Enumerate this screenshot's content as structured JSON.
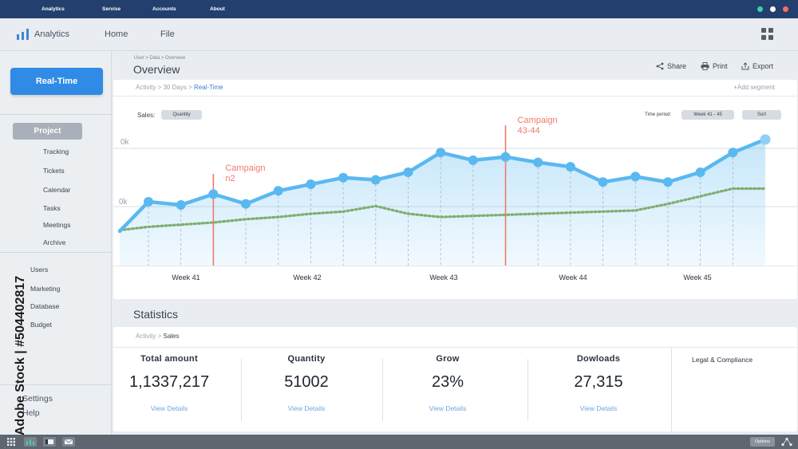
{
  "topbar": {
    "menu": [
      "Analytics",
      "Servise",
      "Accounts",
      "About"
    ],
    "status_colors": [
      "#3ecfa8",
      "#ffffff",
      "#ff6b6b"
    ]
  },
  "header": {
    "brand": "Analytics",
    "nav": [
      "Home",
      "File"
    ],
    "icons": {
      "logo": "bar-chart-icon",
      "apps": "grid-icon"
    }
  },
  "sidebar": {
    "realtime_label": "Real-Time",
    "project_label": "Project",
    "project_items": [
      "Tracking",
      "Tickets",
      "Calendar",
      "Tasks",
      "Meetings",
      "Archive"
    ],
    "admin_items": [
      "Users",
      "Marketing",
      "Database",
      "Budget"
    ],
    "bottom_items": [
      "Settings",
      "Help"
    ]
  },
  "watermark": {
    "vertical_text": "Adobe Stock | #504402817",
    "tile_text": "Adobe Stock"
  },
  "overview": {
    "breadcrumb": "User > Data > Overview",
    "title": "Overview",
    "actions": [
      {
        "label": "Share",
        "icon": "share-icon"
      },
      {
        "label": "Print",
        "icon": "print-icon"
      },
      {
        "label": "Export",
        "icon": "export-icon"
      }
    ]
  },
  "chart_panel": {
    "crumb_activity": "Activity",
    "crumb_days": "30 Days",
    "crumb_current": "Real-Time",
    "add_segment": "+Add segment",
    "sales_label": "Sales:",
    "sales_select": "Quantity",
    "time_period_label": "Time period:",
    "time_period_value": "Week 41 - 45",
    "sort_label": "Sort"
  },
  "chart_data": {
    "type": "line",
    "x_labels": [
      "Week 41",
      "Week 42",
      "Week 43",
      "Week 44",
      "Week 45"
    ],
    "y_tick_labels": [
      "0k",
      "0k"
    ],
    "series": [
      {
        "values": [
          11,
          38,
          35,
          45,
          36,
          48,
          54,
          60,
          58,
          65,
          83,
          76,
          79,
          74,
          70,
          56,
          61,
          56,
          65,
          83,
          95
        ],
        "color": "#5ab8f0",
        "style": "solid-markers"
      },
      {
        "values": [
          12,
          15,
          17,
          19,
          22,
          24,
          27,
          29,
          34,
          27,
          24,
          25,
          26,
          27,
          28,
          29,
          30,
          36,
          43,
          50,
          50
        ],
        "color": "#7fae6e",
        "style": "dotted"
      }
    ],
    "annotations": [
      {
        "label": "Campaign n2",
        "color": "#ef7b6a"
      },
      {
        "label": "Campaign 43-44",
        "color": "#ef7b6a"
      }
    ]
  },
  "statistics": {
    "title": "Statistics",
    "crumb_activity": "Activity",
    "crumb_current": "Sales",
    "items": [
      {
        "label": "Total amount",
        "value": "1,1337,217",
        "link": "View Details"
      },
      {
        "label": "Quantity",
        "value": "51002",
        "link": "View Details"
      },
      {
        "label": "Grow",
        "value": "23%",
        "link": "View Details"
      },
      {
        "label": "Dowloads",
        "value": "27,315",
        "link": "View Details"
      }
    ],
    "legal": "Legal & Compliance"
  },
  "taskbar": {
    "options_label": "Options"
  }
}
